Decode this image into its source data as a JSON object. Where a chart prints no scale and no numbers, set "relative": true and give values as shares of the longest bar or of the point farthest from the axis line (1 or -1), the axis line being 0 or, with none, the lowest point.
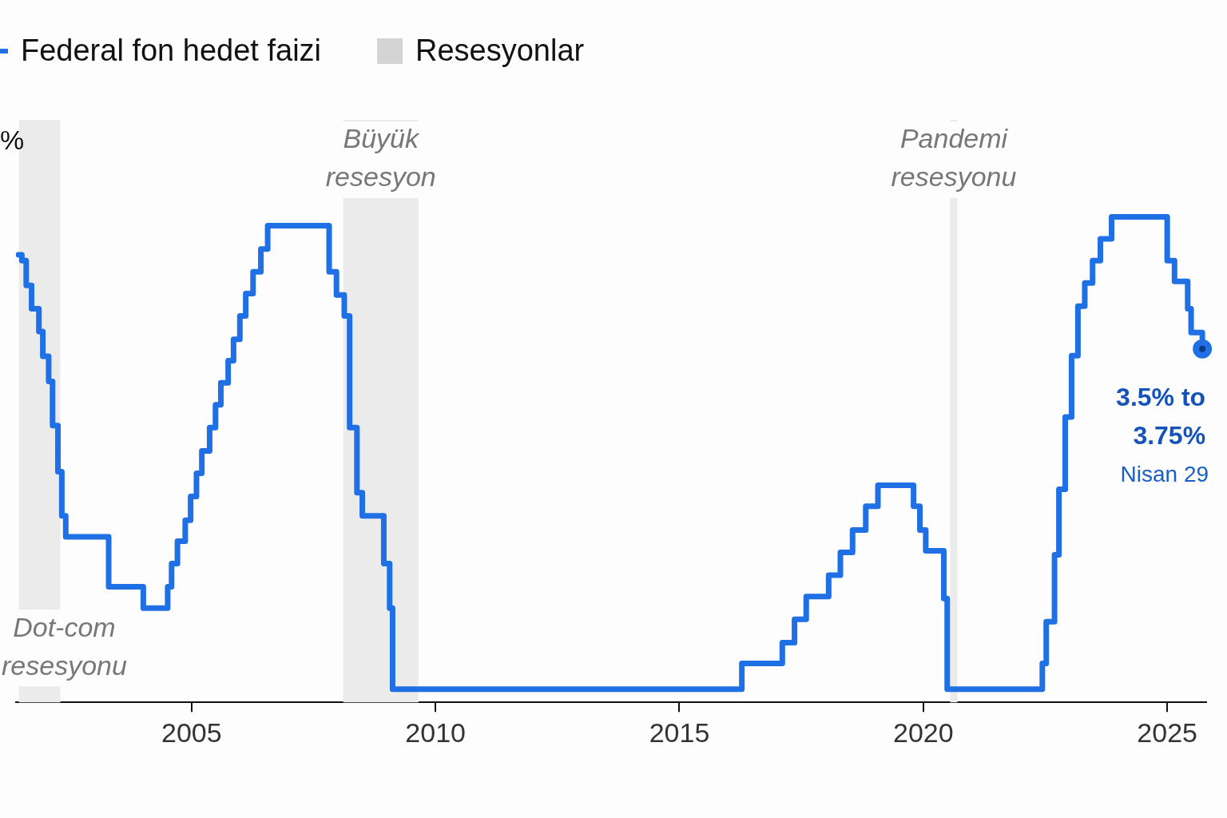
{
  "chart_data": {
    "type": "step",
    "relative": true,
    "ylabel": "%",
    "xlim": [
      2001.4,
      2025.8
    ],
    "xticks": [
      2005,
      2010,
      2015,
      2020,
      2025
    ],
    "legend": "top left",
    "marker": "none",
    "series": [
      {
        "name": "Federal fon hedet faizi",
        "color": "#1f6fe5",
        "x": [
          2001.45,
          2001.52,
          2001.61,
          2001.72,
          2001.87,
          2001.95,
          2002.07,
          2002.15,
          2002.26,
          2002.34,
          2002.42,
          2003.3,
          2004.01,
          2004.51,
          2004.59,
          2004.71,
          2004.87,
          2004.98,
          2005.1,
          2005.21,
          2005.37,
          2005.49,
          2005.6,
          2005.75,
          2005.86,
          2005.99,
          2006.11,
          2006.26,
          2006.42,
          2006.56,
          2007.82,
          2007.97,
          2008.13,
          2008.24,
          2008.39,
          2008.5,
          2008.94,
          2009.06,
          2009.12,
          2016.28,
          2017.11,
          2017.36,
          2017.6,
          2018.06,
          2018.3,
          2018.55,
          2018.82,
          2019.07,
          2019.8,
          2019.93,
          2020.05,
          2020.42,
          2020.49,
          2022.44,
          2022.52,
          2022.69,
          2022.78,
          2022.91,
          2023.04,
          2023.17,
          2023.31,
          2023.47,
          2023.63,
          2023.86,
          2025.0,
          2025.15,
          2025.42,
          2025.49,
          2025.72
        ],
        "values": [
          0.922,
          0.91,
          0.859,
          0.811,
          0.764,
          0.713,
          0.661,
          0.57,
          0.475,
          0.384,
          0.341,
          0.238,
          0.194,
          0.238,
          0.286,
          0.332,
          0.375,
          0.424,
          0.472,
          0.518,
          0.566,
          0.613,
          0.658,
          0.704,
          0.748,
          0.796,
          0.842,
          0.887,
          0.934,
          0.982,
          0.887,
          0.839,
          0.796,
          0.566,
          0.432,
          0.384,
          0.286,
          0.194,
          0.027,
          0.08,
          0.123,
          0.171,
          0.218,
          0.262,
          0.309,
          0.355,
          0.404,
          0.447,
          0.404,
          0.355,
          0.312,
          0.214,
          0.027,
          0.08,
          0.166,
          0.304,
          0.439,
          0.588,
          0.714,
          0.816,
          0.864,
          0.91,
          0.955,
          1,
          0.91,
          0.867,
          0.811,
          0.762,
          0.728
        ]
      }
    ],
    "bands": [
      {
        "axis": "x",
        "from": 2001.46,
        "to": 2002.31,
        "label": "Dot-com resesyonu",
        "color": "#ebebeb"
      },
      {
        "axis": "x",
        "from": 2008.11,
        "to": 2009.65,
        "label": "Büyük resesyon",
        "color": "#ebebeb"
      },
      {
        "axis": "x",
        "from": 2020.55,
        "to": 2020.7,
        "label": "Pandemi resesyonu",
        "color": "#ebebeb"
      }
    ],
    "annotations": [
      "Resesyonlar",
      {
        "text": "3.5% to 3.75%",
        "x": 2025.72,
        "y": 0.728
      },
      "Nisan 29"
    ]
  }
}
